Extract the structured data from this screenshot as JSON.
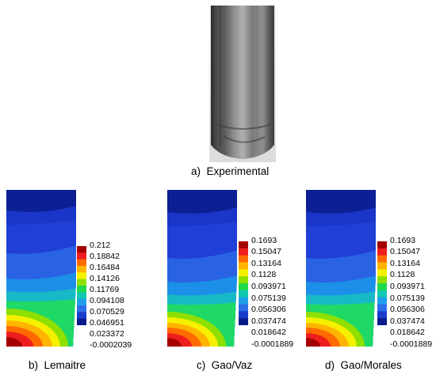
{
  "experimental": {
    "caption": "a)  Experimental"
  },
  "panels": [
    {
      "caption": "b)  Lemaitre",
      "legend_values": [
        "0.212",
        "0.18842",
        "0.16484",
        "0.14126",
        "0.11769",
        "0.094108",
        "0.070529",
        "0.046951",
        "0.023372",
        "-0.0002039"
      ]
    },
    {
      "caption": "c)  Gao/Vaz",
      "legend_values": [
        "0.1693",
        "0.15047",
        "0.13164",
        "0.1128",
        "0.093971",
        "0.075139",
        "0.056306",
        "0.037474",
        "0.018642",
        "-0.0001889"
      ]
    },
    {
      "caption": "d)  Gao/Morales",
      "legend_values": [
        "0.1693",
        "0.15047",
        "0.13164",
        "0.1128",
        "0.093971",
        "0.075139",
        "0.056306",
        "0.037474",
        "0.018642",
        "-0.0001889"
      ]
    }
  ],
  "colors": {
    "legend_scale": [
      "#a50000",
      "#ee1e1e",
      "#ff6a00",
      "#ffb400",
      "#f5f000",
      "#8fe000",
      "#1ed94c",
      "#10c8b2",
      "#1fa0ea",
      "#2c6fe8",
      "#1a3ccc",
      "#0a1a8a"
    ]
  }
}
